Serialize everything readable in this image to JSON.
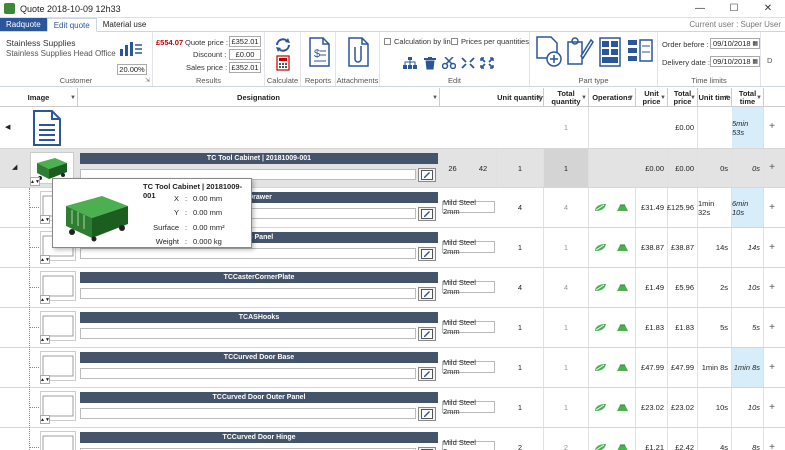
{
  "window": {
    "title": "Quote 2018-10-09 12h33",
    "controls": [
      "—",
      "☐",
      "✕"
    ]
  },
  "tabs": [
    "Radquote",
    "Edit quote",
    "Material use"
  ],
  "current_user": "Current user : Super User",
  "ribbon": {
    "customer": {
      "name": "Stainless Supplies",
      "office": "Stainless Supplies Head Office",
      "discount_pct": "20.00%",
      "group_label": "Customer"
    },
    "results": {
      "quote_price_red": "£554.07",
      "quote_price_label": "Quote price :",
      "quote_price": "£352.01",
      "discount_label": "Discount :",
      "discount": "£0.00",
      "sales_price_label": "Sales price :",
      "sales_price": "£352.01",
      "group_label": "Results"
    },
    "calculate": "Calculate",
    "reports": "Reports",
    "attachments": "Attachments",
    "edit": {
      "calc_by_line": "Calculation by line",
      "prices_per_qty": "Prices per quantities",
      "group_label": "Edit"
    },
    "part_type": {
      "group_label": "Part type"
    },
    "time_limits": {
      "order_before_label": "Order before :",
      "order_before": "09/10/2018",
      "delivery_date_label": "Delivery date :",
      "delivery_date": "09/10/2018",
      "group_label": "Time limits",
      "extra": "D"
    }
  },
  "columns": {
    "image": "Image",
    "designation": "Designation",
    "unit_qty": "Unit quantity",
    "total_qty": "Total quantity",
    "operations": "Operations",
    "unit_price": "Unit price",
    "total_price": "Total price",
    "unit_time": "Unit time",
    "total_time": "Total time"
  },
  "rows": {
    "top": {
      "total_qty": "1",
      "total_price": "£0.00",
      "total_time": "5min 53s"
    },
    "assembly": {
      "name": "TC Tool Cabinet | 20181009-001",
      "n1": "26",
      "n2": "42",
      "unit_qty": "1",
      "total_qty": "1",
      "unit_price": "£0.00",
      "total_price": "£0.00",
      "unit_time": "0s",
      "total_time": "0s"
    },
    "parts": [
      {
        "name": "lDrawer",
        "material": "Mild Steel 2mm",
        "unit_qty": "4",
        "total_qty": "4",
        "unit_price": "£31.49",
        "total_price": "£125.96",
        "unit_time": "1min 32s",
        "total_time": "6min 10s",
        "hl": true
      },
      {
        "name": "se Panel",
        "material": "Mild Steel 2mm",
        "unit_qty": "1",
        "total_qty": "1",
        "unit_price": "£38.87",
        "total_price": "£38.87",
        "unit_time": "14s",
        "total_time": "14s",
        "hl": false
      },
      {
        "name": "TCCasterCornerPlate",
        "material": "Mild Steel 2mm",
        "unit_qty": "4",
        "total_qty": "4",
        "unit_price": "£1.49",
        "total_price": "£5.96",
        "unit_time": "2s",
        "total_time": "10s",
        "hl": false
      },
      {
        "name": "TCASHooks",
        "material": "Mild Steel 2mm",
        "unit_qty": "1",
        "total_qty": "1",
        "unit_price": "£1.83",
        "total_price": "£1.83",
        "unit_time": "5s",
        "total_time": "5s",
        "hl": false
      },
      {
        "name": "TCCurved Door Base",
        "material": "Mild Steel 2mm",
        "unit_qty": "1",
        "total_qty": "1",
        "unit_price": "£47.99",
        "total_price": "£47.99",
        "unit_time": "1min 8s",
        "total_time": "1min 8s",
        "hl": true
      },
      {
        "name": "TCCurved Door Outer Panel",
        "material": "Mild Steel 2mm",
        "unit_qty": "1",
        "total_qty": "1",
        "unit_price": "£23.02",
        "total_price": "£23.02",
        "unit_time": "10s",
        "total_time": "10s",
        "hl": false
      },
      {
        "name": "TCCurved Door Hinge",
        "material": "Mild Steel 2mm",
        "unit_qty": "2",
        "total_qty": "2",
        "unit_price": "£1.21",
        "total_price": "£2.42",
        "unit_time": "4s",
        "total_time": "8s",
        "hl": false
      }
    ]
  },
  "tooltip": {
    "title": "TC Tool Cabinet | 20181009-001",
    "x_label": "X",
    "x": "0.00 mm",
    "y_label": "Y",
    "y": "0.00 mm",
    "surface_label": "Surface",
    "surface": "0.00 mm²",
    "weight_label": "Weight",
    "weight": "0.000 kg",
    "sep": ":"
  }
}
